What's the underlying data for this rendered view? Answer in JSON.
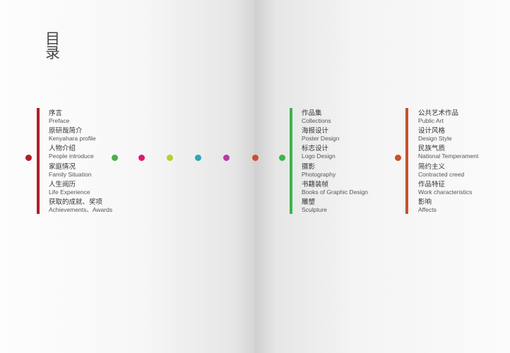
{
  "title": "目录",
  "sections": [
    {
      "color": "#b01e2a",
      "items": [
        {
          "zh": "序言",
          "en": "Preface"
        },
        {
          "zh": "原研哉简介",
          "en": "Kenyahara profile"
        },
        {
          "zh": "人物介绍",
          "en": "People introduce"
        },
        {
          "zh": "家庭情况",
          "en": "Family Situation"
        },
        {
          "zh": "人生阅历",
          "en": "Life Experience"
        },
        {
          "zh": "获取的成就、奖项",
          "en": "Achievements、Awards"
        }
      ]
    },
    {
      "color": "#3cb54a",
      "items": [
        {
          "zh": "作品集",
          "en": "Collections"
        },
        {
          "zh": "海报设计",
          "en": "Poster Design"
        },
        {
          "zh": "标志设计",
          "en": "Logo Design"
        },
        {
          "zh": "摄影",
          "en": "Photography"
        },
        {
          "zh": "书籍装帧",
          "en": "Books of Graphic Design"
        },
        {
          "zh": "雕塑",
          "en": "Sculpture"
        }
      ]
    },
    {
      "color": "#c8502a",
      "items": [
        {
          "zh": "公共艺术作品",
          "en": "Public Art"
        },
        {
          "zh": "设计风格",
          "en": "Design Style"
        },
        {
          "zh": "民族气质",
          "en": "National Temperament"
        },
        {
          "zh": "简约主义",
          "en": "Contracted creed"
        },
        {
          "zh": "作品特征",
          "en": "Work characteristics"
        },
        {
          "zh": "影响",
          "en": "Affects"
        }
      ]
    }
  ],
  "dot_colors": [
    "#b01e2a",
    "#4caf50",
    "#e0196e",
    "#b5cf2a",
    "#2aa8b8",
    "#b83aa0",
    "#c8502a",
    "#3cb54a",
    "#c8502a"
  ]
}
